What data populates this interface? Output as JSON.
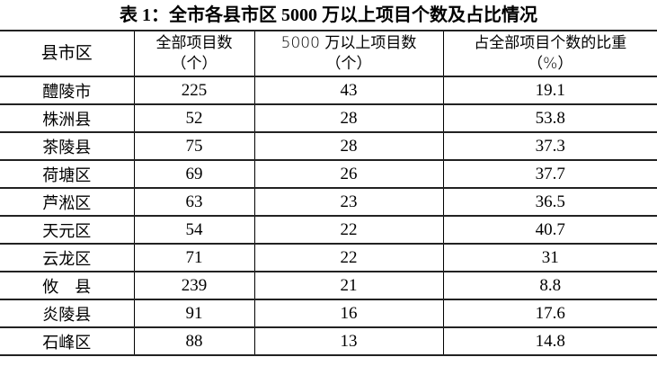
{
  "title": "表 1：全市各县市区 5000 万以上项目个数及占比情况",
  "headers": [
    {
      "line1": "县市区",
      "line2": ""
    },
    {
      "line1": "全部项目数",
      "line2": "（个）"
    },
    {
      "line1": "5000 万以上项目数",
      "line2": "（个）"
    },
    {
      "line1": "占全部项目个数的比重",
      "line2": "（%）"
    }
  ],
  "rows": [
    [
      "醴陵市",
      "225",
      "43",
      "19.1"
    ],
    [
      "株洲县",
      "52",
      "28",
      "53.8"
    ],
    [
      "茶陵县",
      "75",
      "28",
      "37.3"
    ],
    [
      "荷塘区",
      "69",
      "26",
      "37.7"
    ],
    [
      "芦淞区",
      "63",
      "23",
      "36.5"
    ],
    [
      "天元区",
      "54",
      "22",
      "40.7"
    ],
    [
      "云龙区",
      "71",
      "22",
      "31"
    ],
    [
      "攸　县",
      "239",
      "21",
      "8.8"
    ],
    [
      "炎陵县",
      "91",
      "16",
      "17.6"
    ],
    [
      "石峰区",
      "88",
      "13",
      "14.8"
    ]
  ]
}
